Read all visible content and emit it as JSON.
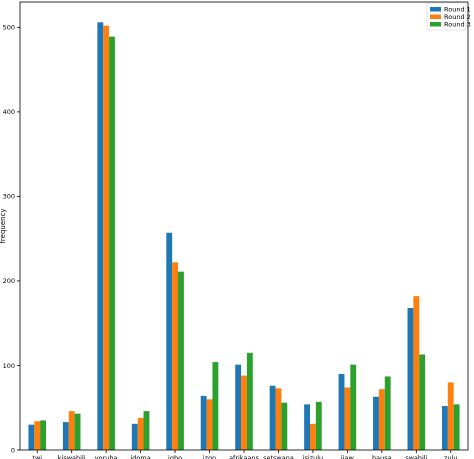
{
  "chart_data": {
    "type": "bar",
    "title": "",
    "xlabel": "",
    "ylabel": "frequency",
    "ylim": [
      0,
      530
    ],
    "yticks": [
      0,
      100,
      200,
      300,
      400,
      500
    ],
    "grid": false,
    "legend_position": "top-right",
    "categories": [
      "twi",
      "kiswahili",
      "yoruba",
      "idoma",
      "igbo",
      "izon",
      "afrikaans",
      "setswana",
      "isizulu",
      "ijaw",
      "hausa",
      "swahili",
      "zulu"
    ],
    "series": [
      {
        "name": "Round 1",
        "color": "#1f77b4",
        "values": [
          30,
          33,
          506,
          31,
          257,
          64,
          101,
          76,
          54,
          90,
          63,
          168,
          52
        ]
      },
      {
        "name": "Round 2",
        "color": "#ff7f0e",
        "values": [
          34,
          46,
          502,
          38,
          222,
          60,
          88,
          73,
          31,
          74,
          72,
          182,
          80
        ]
      },
      {
        "name": "Round 3",
        "color": "#2ca02c",
        "values": [
          35,
          43,
          489,
          46,
          211,
          104,
          115,
          56,
          57,
          101,
          87,
          113,
          54
        ]
      }
    ]
  }
}
